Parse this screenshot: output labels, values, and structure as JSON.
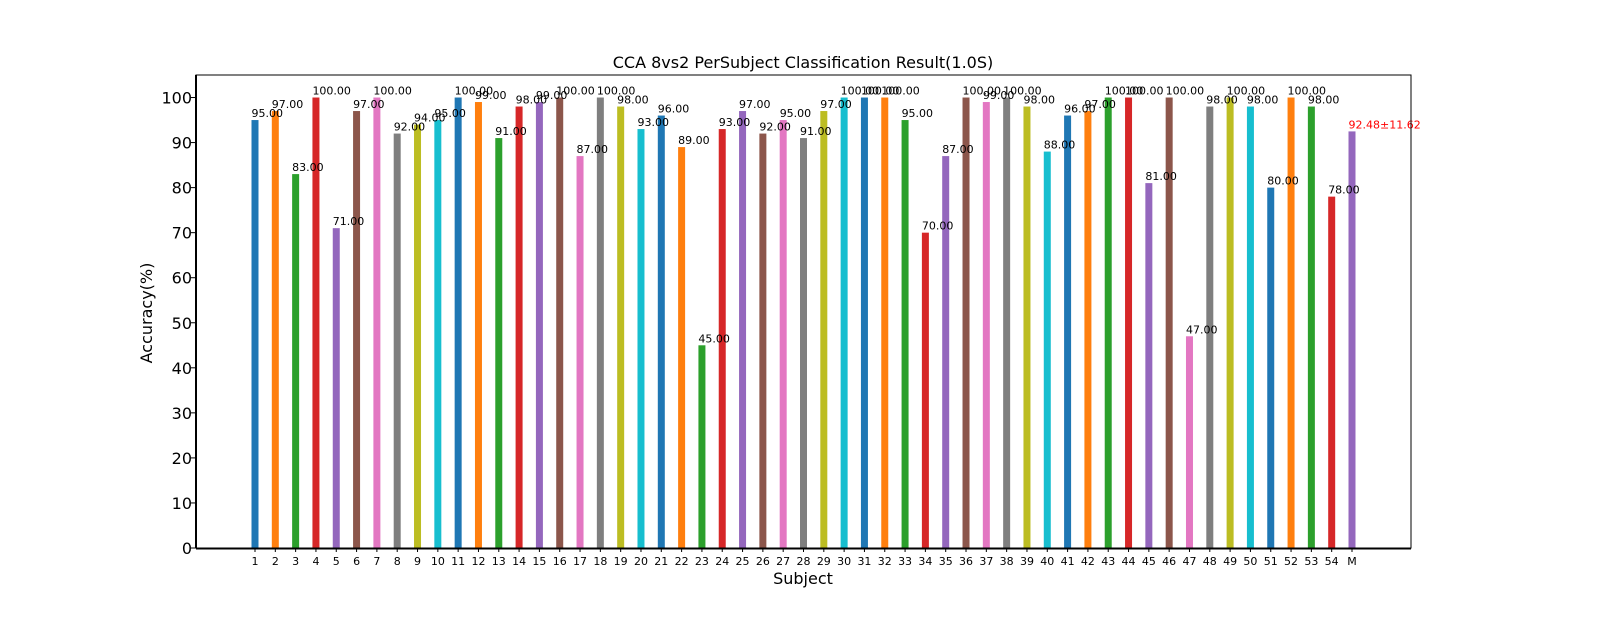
{
  "chart_data": {
    "type": "bar",
    "title": "CCA 8vs2 PerSubject Classification Result(1.0S)",
    "xlabel": "Subject",
    "ylabel": "Accuracy(%)",
    "ylim": [
      0,
      105
    ],
    "yticks": [
      "0",
      "10",
      "20",
      "30",
      "40",
      "50",
      "60",
      "70",
      "80",
      "90",
      "100"
    ],
    "grid": false,
    "legend": "none",
    "categories": [
      "1",
      "2",
      "3",
      "4",
      "5",
      "6",
      "7",
      "8",
      "9",
      "10",
      "11",
      "12",
      "13",
      "14",
      "15",
      "16",
      "17",
      "18",
      "19",
      "20",
      "21",
      "22",
      "23",
      "24",
      "25",
      "26",
      "27",
      "28",
      "29",
      "30",
      "31",
      "32",
      "33",
      "34",
      "35",
      "36",
      "37",
      "38",
      "39",
      "40",
      "41",
      "42",
      "43",
      "44",
      "45",
      "46",
      "47",
      "48",
      "49",
      "50",
      "51",
      "52",
      "53",
      "54",
      "M"
    ],
    "values": [
      95,
      97,
      83,
      100,
      71,
      97,
      100,
      92,
      94,
      95,
      100,
      99,
      91,
      98,
      99,
      100,
      87,
      100,
      98,
      93,
      96,
      89,
      45,
      93,
      97,
      92,
      95,
      91,
      97,
      100,
      100,
      100,
      95,
      70,
      87,
      100,
      99,
      100,
      98,
      88,
      96,
      97,
      100,
      100,
      81,
      100,
      47,
      98,
      100,
      98,
      80,
      100,
      98,
      78,
      92.48
    ],
    "labels": [
      "95.00",
      "97.00",
      "83.00",
      "100.00",
      "71.00",
      "97.00",
      "100.00",
      "92.00",
      "94.00",
      "95.00",
      "100.00",
      "99.00",
      "91.00",
      "98.00",
      "99.00",
      "100.00",
      "87.00",
      "100.00",
      "98.00",
      "93.00",
      "96.00",
      "89.00",
      "45.00",
      "93.00",
      "97.00",
      "92.00",
      "95.00",
      "91.00",
      "97.00",
      "100.00",
      "100.00",
      "100.00",
      "95.00",
      "70.00",
      "87.00",
      "100.00",
      "99.00",
      "100.00",
      "98.00",
      "88.00",
      "96.00",
      "97.00",
      "100.00",
      "100.00",
      "81.00",
      "100.00",
      "47.00",
      "98.00",
      "100.00",
      "98.00",
      "80.00",
      "100.00",
      "98.00",
      "78.00",
      "92.48±11.62"
    ],
    "colors": [
      "#1f77b4",
      "#ff7f0e",
      "#2ca02c",
      "#d62728",
      "#9467bd",
      "#8c564b",
      "#e377c2",
      "#7f7f7f",
      "#bcbd22",
      "#17becf"
    ],
    "mean_label_color": "#ff0000"
  }
}
